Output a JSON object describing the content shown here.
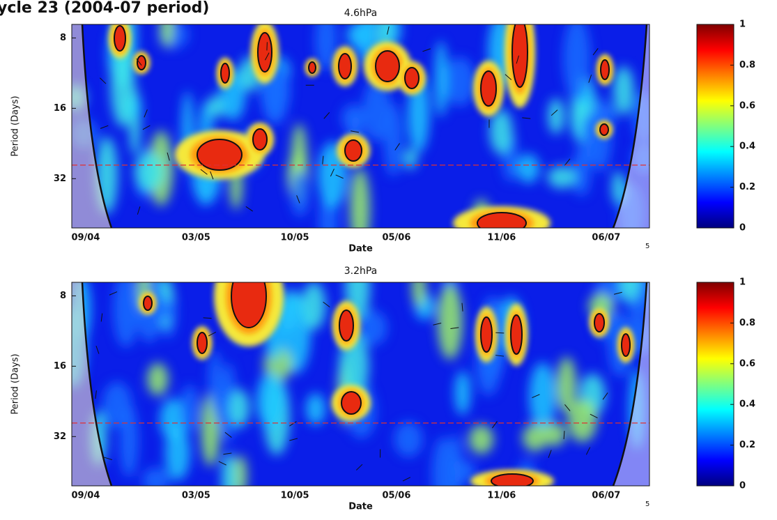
{
  "title": "ycle 23 (2004-07 period)",
  "chart_data": [
    {
      "type": "wavelet-coherence",
      "title": "4.6hPa",
      "xlabel": "Date",
      "ylabel": "Period (Days)",
      "categories": [
        "09/04",
        "03/05",
        "10/05",
        "05/06",
        "11/06",
        "06/07"
      ],
      "corner_note": "5",
      "ylim": [
        7,
        52
      ],
      "yticks": [
        8,
        16,
        32
      ],
      "log_scale_y": true,
      "reference_period": 28,
      "reference_color": "#e03030",
      "colormap": "jet",
      "clim": [
        0,
        1
      ],
      "cticks": [
        0,
        0.2,
        0.4,
        0.6,
        0.8,
        1
      ]
    },
    {
      "type": "wavelet-coherence",
      "title": "3.2hPa",
      "xlabel": "Date",
      "ylabel": "Period (Days)",
      "categories": [
        "09/04",
        "03/05",
        "10/05",
        "05/06",
        "11/06",
        "06/07"
      ],
      "corner_note": "5",
      "ylim": [
        7,
        52
      ],
      "yticks": [
        8,
        16,
        32
      ],
      "log_scale_y": true,
      "reference_period": 28,
      "reference_color": "#e03030",
      "colormap": "jet",
      "clim": [
        0,
        1
      ],
      "cticks": [
        0,
        0.2,
        0.4,
        0.6,
        0.8,
        1
      ]
    }
  ]
}
